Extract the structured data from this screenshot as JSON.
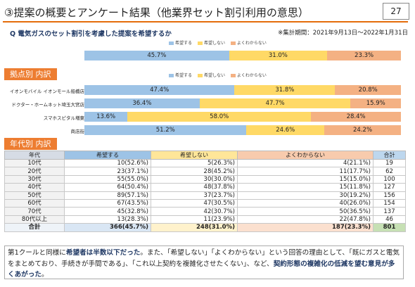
{
  "header": {
    "title": "③提案の概要とアンケート結果（他業界セット割引利用の意思）",
    "page_number": "27"
  },
  "question": "Q 電気ガスのセット割引を考慮した提案を希望するか",
  "period": "※集計期間：2021年9月13日～2022年1月31日",
  "legend": {
    "yes": "希望する",
    "no": "希望しない",
    "unknown": "よくわからない"
  },
  "colors": {
    "yes": "#9dc3e6",
    "no": "#ffd966",
    "unknown": "#f4b183",
    "accent": "#ed7d31"
  },
  "overall": {
    "yes": {
      "value": 45.7,
      "label": "45.7%"
    },
    "no": {
      "value": 31.0,
      "label": "31.0%"
    },
    "unknown": {
      "value": 23.3,
      "label": "23.3%"
    }
  },
  "store_section": {
    "label": "拠点別 内訳",
    "rows": [
      {
        "name": "イオンモバイル イオンモール船橋店",
        "yes": 47.4,
        "yes_label": "47.4%",
        "no": 31.8,
        "no_label": "31.8%",
        "unknown": 20.8,
        "unknown_label": "20.8%"
      },
      {
        "name": "ドクター・ホームネット埼玉大宮店",
        "yes": 36.4,
        "yes_label": "36.4%",
        "no": 47.7,
        "no_label": "47.7%",
        "unknown": 15.9,
        "unknown_label": "15.9%"
      },
      {
        "name": "スマホスピタル増東",
        "yes": 13.6,
        "yes_label": "13.6%",
        "no": 58.0,
        "no_label": "58.0%",
        "unknown": 28.4,
        "unknown_label": "28.4%"
      },
      {
        "name": "商店街",
        "yes": 51.2,
        "yes_label": "51.2%",
        "no": 24.6,
        "no_label": "24.6%",
        "unknown": 24.2,
        "unknown_label": "24.2%"
      }
    ]
  },
  "age_section": {
    "label": "年代別 内訳",
    "headers": [
      "年代",
      "希望する",
      "希望しない",
      "よくわからない",
      "合計"
    ],
    "rows": [
      {
        "age": "10代",
        "yes": "10(52.6%)",
        "no": "5(26.3%)",
        "unknown": "4(21.1%)",
        "total": "19"
      },
      {
        "age": "20代",
        "yes": "23(37.1%)",
        "no": "28(45.2%)",
        "unknown": "11(17.7%)",
        "total": "62"
      },
      {
        "age": "30代",
        "yes": "55(55.0%)",
        "no": "30(30.0%)",
        "unknown": "15(15.0%)",
        "total": "100"
      },
      {
        "age": "40代",
        "yes": "64(50.4%)",
        "no": "48(37.8%)",
        "unknown": "15(11.8%)",
        "total": "127"
      },
      {
        "age": "50代",
        "yes": "89(57.1%)",
        "no": "37(23.7%)",
        "unknown": "30(19.2%)",
        "total": "156"
      },
      {
        "age": "60代",
        "yes": "67(43.5%)",
        "no": "47(30.5%)",
        "unknown": "40(26.0%)",
        "total": "154"
      },
      {
        "age": "70代",
        "yes": "45(32.8%)",
        "no": "42(30.7%)",
        "unknown": "50(36.5%)",
        "total": "137"
      },
      {
        "age": "80代以上",
        "yes": "13(28.3%)",
        "no": "11(23.9%)",
        "unknown": "22(47.8%)",
        "total": "46"
      }
    ],
    "total_row": {
      "age": "合計",
      "yes": "366(45.7%)",
      "no": "248(31.0%)",
      "unknown": "187(23.3%)",
      "total": "801"
    }
  },
  "summary": {
    "p1": "第1クールと同様に",
    "e1": "希望者は半数以下だった",
    "p2": "。また、「希望しない」「よくわからない」という回答の理由として、「既にガスと電気をまとめており、手続きが手間である」、「これ以上契約を複雑化させたくない」、など、",
    "e2": "契約形態の複雑化の低減を望む意見が多くあがった",
    "p3": "。"
  }
}
